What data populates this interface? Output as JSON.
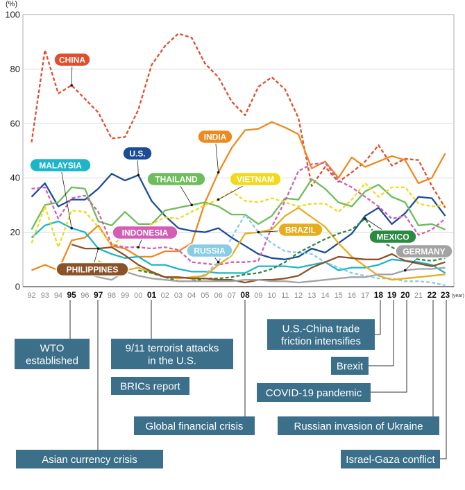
{
  "chart_data": {
    "type": "line",
    "unit_label": "(%)",
    "year_unit": "(year)",
    "ylim": [
      0,
      100
    ],
    "y_ticks": [
      "0",
      "20",
      "40",
      "60",
      "80",
      "100"
    ],
    "x_ticks": [
      "92",
      "93",
      "94",
      "95",
      "96",
      "97",
      "98",
      "99",
      "00",
      "01",
      "02",
      "03",
      "04",
      "05",
      "06",
      "07",
      "08",
      "09",
      "10",
      "11",
      "12",
      "13",
      "14",
      "15",
      "16",
      "17",
      "18",
      "19",
      "20",
      "21",
      "22",
      "23"
    ],
    "x_ticks_bold": [
      "95",
      "97",
      "01",
      "08",
      "18",
      "19",
      "20",
      "22",
      "23"
    ],
    "series": [
      {
        "name": "CHINA",
        "color": "#e04e2c",
        "style": "dashed",
        "values": [
          53,
          87,
          71,
          74,
          69,
          64,
          54.5,
          55,
          65,
          81.5,
          88.5,
          93,
          91.5,
          82,
          77,
          68,
          63,
          73.5,
          77,
          72.5,
          62,
          37,
          44,
          38.5,
          42,
          46,
          52,
          44.5,
          47,
          46.5,
          37,
          29
        ]
      },
      {
        "name": "INDIA",
        "color": "#ec8a1e",
        "style": "solid",
        "values": [
          6,
          8,
          6,
          17,
          18,
          22.5,
          15,
          14,
          11,
          11,
          13,
          13,
          16,
          31,
          42,
          51,
          57.5,
          58,
          60.5,
          58.5,
          56,
          43.5,
          46,
          40,
          47.5,
          44,
          46,
          48,
          46.5,
          38,
          40,
          49
        ]
      },
      {
        "name": "U.S.",
        "color": "#1c4c97",
        "style": "solid",
        "values": [
          33,
          38,
          29.5,
          32,
          32,
          36,
          41.5,
          39,
          41,
          31.5,
          26,
          21.5,
          20.5,
          20,
          21.5,
          18,
          15,
          12,
          10.5,
          10,
          11,
          14,
          12.5,
          16,
          19.5,
          26,
          29,
          23,
          27,
          33,
          32.5,
          26
        ]
      },
      {
        "name": "MALAYSIA",
        "color": "#1db5c8",
        "style": "solid",
        "values": [
          18,
          22.5,
          24,
          21.5,
          20,
          14,
          12,
          10.5,
          11,
          8,
          8,
          6.5,
          5.5,
          5.5,
          5,
          5,
          5,
          7.5,
          7.5,
          7.5,
          7,
          8,
          9,
          6,
          7,
          7,
          8,
          10,
          9.5,
          9,
          8,
          5
        ]
      },
      {
        "name": "THAILAND",
        "color": "#6fbc5a",
        "style": "solid",
        "values": [
          21,
          30,
          31,
          36.5,
          36,
          24,
          22.5,
          27.5,
          23,
          23,
          28,
          29,
          30,
          31,
          29.5,
          26.5,
          26.5,
          23,
          26,
          32.5,
          32,
          39.5,
          36,
          31,
          29.5,
          35,
          37.5,
          33,
          31,
          22.5,
          23,
          21
        ]
      },
      {
        "name": "VIETNAM",
        "color": "#f2d91c",
        "style": "dashed",
        "values": [
          16,
          29.5,
          14.5,
          28,
          27.5,
          22,
          15,
          19,
          20,
          23,
          25.5,
          25,
          27.5,
          30,
          32,
          35,
          31.5,
          31,
          32.5,
          31,
          29.5,
          30.5,
          30.5,
          27.5,
          32,
          38,
          33,
          36.5,
          36.5,
          30.5,
          29.5,
          30
        ]
      },
      {
        "name": "INDONESIA",
        "color": "#d45eb3",
        "style": "dashed",
        "values": [
          36,
          36.5,
          25,
          32.5,
          33.5,
          27.5,
          15.5,
          14.5,
          14.5,
          14,
          14.5,
          13.5,
          9,
          8.5,
          8,
          9,
          9,
          9.5,
          22,
          31.5,
          42.5,
          45,
          45.5,
          39,
          36.5,
          33,
          29.5,
          25,
          26,
          19,
          21,
          25
        ]
      },
      {
        "name": "RUSSIA",
        "color": "#8acbe6",
        "style": "dashed",
        "values": [
          null,
          null,
          null,
          null,
          null,
          null,
          null,
          null,
          null,
          null,
          null,
          null,
          2.5,
          4.5,
          9,
          18,
          26.5,
          20,
          16,
          13,
          12.5,
          12,
          9,
          7,
          5,
          4,
          3,
          3,
          2,
          2,
          1.5,
          0.5
        ]
      },
      {
        "name": "BRAZIL",
        "color": "#e8ad1e",
        "style": "solid",
        "values": [
          null,
          null,
          null,
          null,
          null,
          9.5,
          6.5,
          6,
          7,
          5,
          3.5,
          3,
          3.5,
          4,
          8,
          11.5,
          19.5,
          20,
          21,
          26,
          29,
          25.5,
          22,
          16,
          11,
          7.5,
          4,
          2.5,
          3,
          3.5,
          4,
          4.5
        ]
      },
      {
        "name": "MEXICO",
        "color": "#2a8a42",
        "style": "dashed",
        "values": [
          null,
          null,
          null,
          null,
          null,
          null,
          null,
          null,
          6,
          5,
          3.5,
          2,
          2,
          3,
          3,
          3.5,
          4.5,
          5,
          6.5,
          9,
          12.5,
          15,
          17.5,
          19.5,
          21,
          25,
          17,
          14.5,
          12,
          10,
          9.5,
          10.5
        ]
      },
      {
        "name": "PHILIPPINES",
        "color": "#8b5228",
        "style": "solid",
        "values": [
          null,
          null,
          null,
          15.5,
          14,
          14,
          14.5,
          11.5,
          8,
          5.5,
          3.5,
          3.5,
          3,
          3,
          2.5,
          2.5,
          1.5,
          2.5,
          2.5,
          3,
          4,
          7,
          9,
          11,
          10.5,
          10,
          10,
          12,
          9.5,
          8.5,
          7.5,
          9
        ]
      },
      {
        "name": "GERMANY",
        "color": "#a3a3a3",
        "style": "solid",
        "values": [
          null,
          null,
          null,
          null,
          5,
          3.5,
          2.5,
          5.5,
          4,
          3,
          2.5,
          2,
          2,
          2,
          2,
          2,
          2.5,
          2.5,
          2,
          2,
          1.5,
          2,
          2.5,
          3,
          3.5,
          3.5,
          4.5,
          4.5,
          6,
          6.5,
          6.5,
          7
        ]
      }
    ],
    "series_labels": [
      "CHINA",
      "INDIA",
      "U.S.",
      "MALAYSIA",
      "THAILAND",
      "VIETNAM",
      "INDONESIA",
      "RUSSIA",
      "BRAZIL",
      "MEXICO",
      "PHILIPPINES",
      "GERMANY"
    ],
    "events": [
      {
        "year": "95",
        "text": "WTO\nestablished"
      },
      {
        "year": "97",
        "text": "Asian currency crisis"
      },
      {
        "year": "01",
        "text": "9/11 terrorist attacks\nin the U.S."
      },
      {
        "year": "01",
        "text": "BRICs report"
      },
      {
        "year": "08",
        "text": "Global financial crisis"
      },
      {
        "year": "18",
        "text": "U.S.-China trade\nfriction intensifies"
      },
      {
        "year": "19",
        "text": "Brexit"
      },
      {
        "year": "20",
        "text": "COVID-19 pandemic"
      },
      {
        "year": "22",
        "text": "Russian invasion of Ukraine"
      },
      {
        "year": "23",
        "text": "Israel-Gaza conflict"
      }
    ],
    "grid": "horizontal",
    "legend": "inline-labels"
  }
}
